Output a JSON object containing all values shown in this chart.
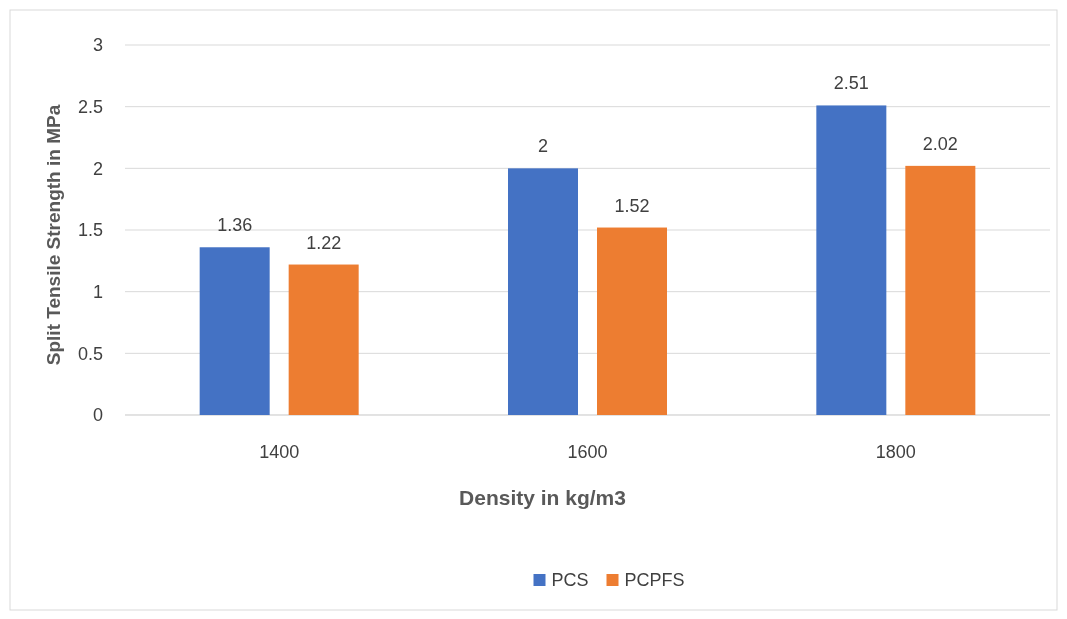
{
  "chart_data": {
    "type": "bar",
    "xlabel": "Density in kg/m3",
    "ylabel": "Split Tensile Strength in MPa",
    "categories": [
      "1400",
      "1600",
      "1800"
    ],
    "series": [
      {
        "name": "PCS",
        "color": "#4472c4",
        "values": [
          1.36,
          2,
          2.51
        ]
      },
      {
        "name": "PCPFS",
        "color": "#ed7d31",
        "values": [
          1.22,
          1.52,
          2.02
        ]
      }
    ],
    "ylim": [
      0,
      3
    ],
    "yticks": [
      0,
      {
        "value": 0.5,
        "label": "0.5"
      },
      1,
      {
        "value": 1.5,
        "label": "1.5"
      },
      2,
      {
        "value": 2.5,
        "label": "2.5"
      },
      3
    ],
    "grid": "y",
    "legend": "bottom",
    "data_labels": true
  }
}
